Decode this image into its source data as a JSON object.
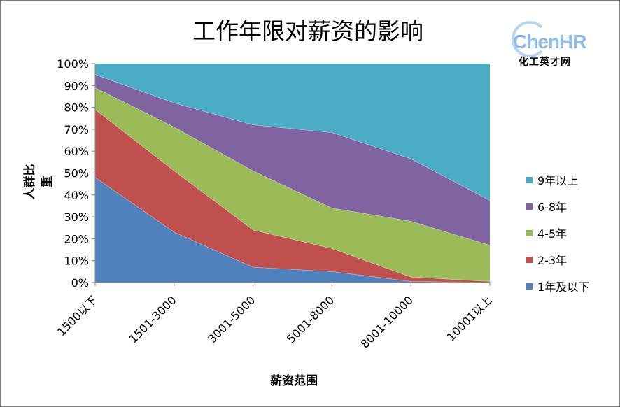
{
  "chart_data": {
    "type": "area",
    "stacked": "percent",
    "title": "工作年限对薪资的影响",
    "xlabel": "薪资范围",
    "ylabel": "人群比重",
    "categories": [
      "1500以下",
      "1501-3000",
      "3001-5000",
      "5001-8000",
      "8001-10000",
      "10001以上"
    ],
    "yticks": [
      "0%",
      "10%",
      "20%",
      "30%",
      "40%",
      "50%",
      "60%",
      "70%",
      "80%",
      "90%",
      "100%"
    ],
    "ylim": [
      0,
      100
    ],
    "series": [
      {
        "name": "1年及以下",
        "color": "#4f81bd",
        "values": [
          48,
          23,
          7,
          5,
          0.5,
          0
        ]
      },
      {
        "name": "2-3年",
        "color": "#c0504d",
        "values": [
          31,
          28,
          17,
          10.5,
          2,
          0.5
        ]
      },
      {
        "name": "4-5年",
        "color": "#9bbb59",
        "values": [
          10,
          20,
          27,
          18.5,
          25.5,
          16.5
        ]
      },
      {
        "name": "6-8年",
        "color": "#8064a2",
        "values": [
          6,
          11,
          21,
          34.5,
          28.5,
          20.5
        ]
      },
      {
        "name": "9年以上",
        "color": "#4bacc6",
        "values": [
          5,
          18,
          28,
          31.5,
          43.5,
          62.5
        ]
      }
    ],
    "legend_position": "right",
    "grid": false
  },
  "logo": {
    "text": "ChenHR",
    "subtitle": "化工英才网"
  }
}
